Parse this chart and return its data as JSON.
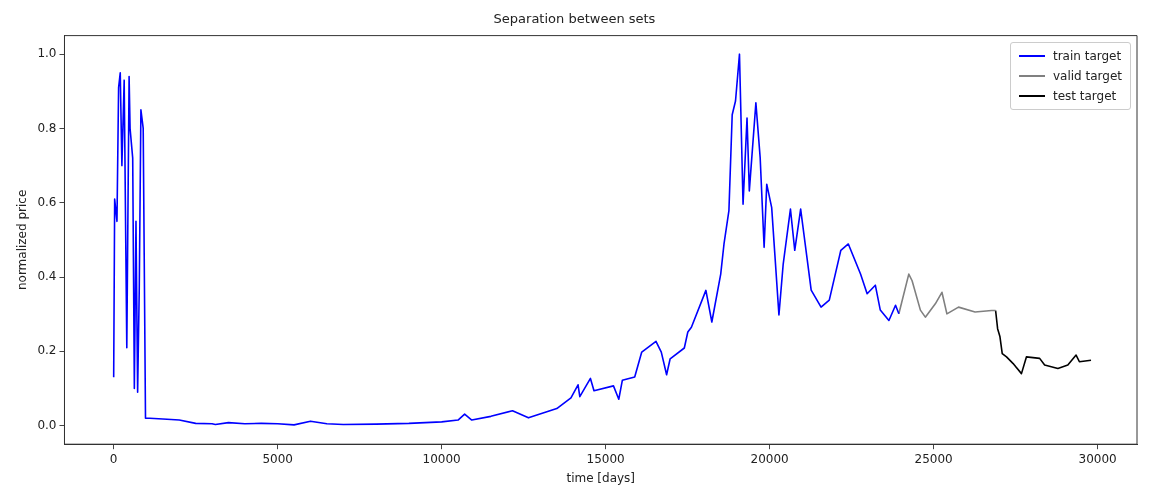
{
  "chart_data": {
    "type": "line",
    "title": "Separation between sets",
    "xlabel": "time [days]",
    "ylabel": "normalized price",
    "xlim": [
      -1500,
      31200
    ],
    "xticks": [
      0,
      5000,
      10000,
      15000,
      20000,
      25000,
      30000
    ],
    "ylim": [
      -0.05,
      1.05
    ],
    "yticks": [
      {
        "value": 0,
        "label": "0.0"
      },
      {
        "value": 0.2,
        "label": "0.2"
      },
      {
        "value": 0.4,
        "label": "0.4"
      },
      {
        "value": 0.6,
        "label": "0.6"
      },
      {
        "value": 0.8,
        "label": "0.8"
      },
      {
        "value": 1,
        "label": "1.0"
      }
    ],
    "grid": false,
    "legend": "top right",
    "marker": "none",
    "line_style": "solid",
    "series": [
      {
        "name": "train target",
        "color": "#0000ff",
        "x": [
          0,
          30,
          100,
          150,
          200,
          250,
          320,
          400,
          470,
          500,
          580,
          630,
          680,
          730,
          780,
          830,
          900,
          970,
          1100,
          1500,
          2000,
          2500,
          3000,
          3100,
          3500,
          4000,
          4500,
          5000,
          5500,
          6000,
          6500,
          7000,
          8000,
          9000,
          10000,
          10500,
          10700,
          10918,
          11500,
          12160,
          12646,
          13510,
          13942,
          14158,
          14212,
          14536,
          14644,
          15238,
          15400,
          15508,
          15886,
          16100,
          16534,
          16696,
          16858,
          16966,
          17398,
          17505,
          17614,
          18056,
          18237,
          18508,
          18608,
          18758,
          18858,
          18959,
          19080,
          19189,
          19310,
          19380,
          19580,
          19711,
          19831,
          19911,
          20062,
          20283,
          20413,
          20634,
          20765,
          20945,
          21266,
          21567,
          21818,
          22170,
          22399,
          22771,
          22972,
          23222,
          23373,
          23636,
          23838,
          23939
        ],
        "values": [
          0.13,
          0.61,
          0.55,
          0.91,
          0.95,
          0.7,
          0.93,
          0.21,
          0.94,
          0.8,
          0.72,
          0.1,
          0.55,
          0.09,
          0.37,
          0.85,
          0.8,
          0.02,
          0.02,
          0.018,
          0.015,
          0.006,
          0.005,
          0.003,
          0.008,
          0.005,
          0.006,
          0.005,
          0.002,
          0.012,
          0.005,
          0.003,
          0.004,
          0.006,
          0.01,
          0.015,
          0.031,
          0.015,
          0.025,
          0.04,
          0.021,
          0.046,
          0.075,
          0.11,
          0.078,
          0.127,
          0.094,
          0.107,
          0.071,
          0.122,
          0.131,
          0.198,
          0.227,
          0.198,
          0.137,
          0.18,
          0.209,
          0.252,
          0.265,
          0.364,
          0.279,
          0.408,
          0.489,
          0.579,
          0.837,
          0.874,
          1.0,
          0.596,
          0.828,
          0.632,
          0.869,
          0.721,
          0.48,
          0.65,
          0.587,
          0.298,
          0.435,
          0.583,
          0.472,
          0.583,
          0.365,
          0.319,
          0.338,
          0.472,
          0.489,
          0.408,
          0.355,
          0.378,
          0.311,
          0.283,
          0.324,
          0.301
        ]
      },
      {
        "name": "valid target",
        "color": "#808080",
        "x": [
          23939,
          24242,
          24343,
          24596,
          24747,
          25051,
          25253,
          25404,
          25758,
          26263,
          26768,
          26889
        ],
        "values": [
          0.301,
          0.408,
          0.39,
          0.311,
          0.292,
          0.328,
          0.359,
          0.301,
          0.319,
          0.306,
          0.31,
          0.31
        ]
      },
      {
        "name": "test target",
        "color": "#000000",
        "x": [
          26889,
          26950,
          27020,
          27091,
          27222,
          27424,
          27677,
          27828,
          28232,
          28384,
          28788,
          29091,
          29343,
          29444,
          29798
        ],
        "values": [
          0.31,
          0.261,
          0.24,
          0.194,
          0.185,
          0.167,
          0.14,
          0.185,
          0.181,
          0.163,
          0.154,
          0.163,
          0.19,
          0.172,
          0.176
        ]
      }
    ]
  }
}
